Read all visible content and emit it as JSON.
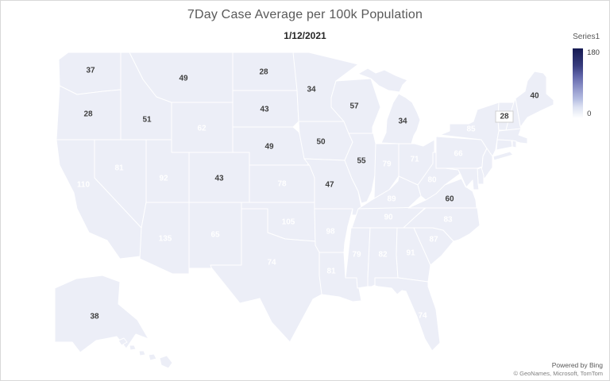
{
  "chart_data": {
    "type": "choropleth",
    "title": "7Day Case Average per 100k Population",
    "date": "1/12/2021",
    "series": "Series1",
    "value_range": [
      0,
      180
    ],
    "states": [
      {
        "id": "WA",
        "value": 37
      },
      {
        "id": "OR",
        "value": 28
      },
      {
        "id": "CA",
        "value": 110
      },
      {
        "id": "NV",
        "value": 81
      },
      {
        "id": "ID",
        "value": 51
      },
      {
        "id": "MT",
        "value": 49
      },
      {
        "id": "WY",
        "value": 62
      },
      {
        "id": "UT",
        "value": 92
      },
      {
        "id": "AZ",
        "value": 135
      },
      {
        "id": "NM",
        "value": 65
      },
      {
        "id": "CO",
        "value": 43
      },
      {
        "id": "ND",
        "value": 28
      },
      {
        "id": "SD",
        "value": 43
      },
      {
        "id": "NE",
        "value": 49
      },
      {
        "id": "KS",
        "value": 78
      },
      {
        "id": "OK",
        "value": 105
      },
      {
        "id": "TX",
        "value": 74
      },
      {
        "id": "MN",
        "value": 34
      },
      {
        "id": "IA",
        "value": 50
      },
      {
        "id": "MO",
        "value": 47
      },
      {
        "id": "AR",
        "value": 98
      },
      {
        "id": "LA",
        "value": 81
      },
      {
        "id": "WI",
        "value": 57
      },
      {
        "id": "IL",
        "value": 55
      },
      {
        "id": "MS",
        "value": 79
      },
      {
        "id": "MI",
        "value": 34
      },
      {
        "id": "IN",
        "value": 79
      },
      {
        "id": "OH",
        "value": 71
      },
      {
        "id": "KY",
        "value": 89
      },
      {
        "id": "TN",
        "value": 90
      },
      {
        "id": "AL",
        "value": 82
      },
      {
        "id": "GA",
        "value": 91
      },
      {
        "id": "FL",
        "value": 74
      },
      {
        "id": "SC",
        "value": 87
      },
      {
        "id": "NC",
        "value": 83
      },
      {
        "id": "VA",
        "value": 60
      },
      {
        "id": "WV",
        "value": 80
      },
      {
        "id": "PA",
        "value": 66
      },
      {
        "id": "NY",
        "value": 85
      },
      {
        "id": "VT",
        "value": 28,
        "boxed": true
      },
      {
        "id": "ME",
        "value": 40
      },
      {
        "id": "AK",
        "value": 38
      },
      {
        "id": "NH",
        "fill": "#c3cae6"
      },
      {
        "id": "MA",
        "fill": "#787dbb"
      },
      {
        "id": "RI",
        "fill": "#3f4386"
      },
      {
        "id": "CT",
        "fill": "#8489c2"
      },
      {
        "id": "NJ",
        "fill": "#7d82be"
      },
      {
        "id": "DE",
        "fill": "#9aa0d0"
      },
      {
        "id": "MD",
        "fill": "#8186c0"
      },
      {
        "id": "HI",
        "fill": "#e3e7f5"
      }
    ]
  },
  "legend": {
    "max_label": "180",
    "min_label": "0"
  },
  "scale_colors": {
    "min": "#ffffff",
    "max": "#151a52"
  },
  "attribution": {
    "line1": "Powered by Bing",
    "line2": "© GeoNames, Microsoft, TomTom"
  }
}
